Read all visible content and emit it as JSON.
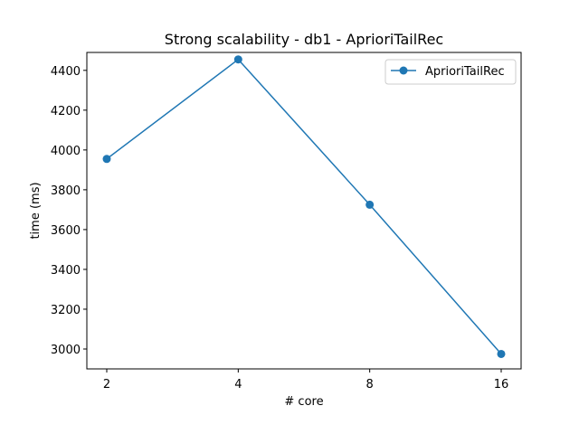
{
  "chart_data": {
    "type": "line",
    "title": "Strong scalability - db1 - AprioriTailRec",
    "xlabel": "# core",
    "ylabel": "time (ms)",
    "categories": [
      "2",
      "4",
      "8",
      "16"
    ],
    "series": [
      {
        "name": "AprioriTailRec",
        "values": [
          3955,
          4455,
          3725,
          2975
        ],
        "color": "#1f77b4",
        "marker": "circle"
      }
    ],
    "ylim": [
      2900,
      4490
    ],
    "yticks": [
      3000,
      3200,
      3400,
      3600,
      3800,
      4000,
      4200,
      4400
    ],
    "grid": false,
    "legend": "top-right"
  }
}
